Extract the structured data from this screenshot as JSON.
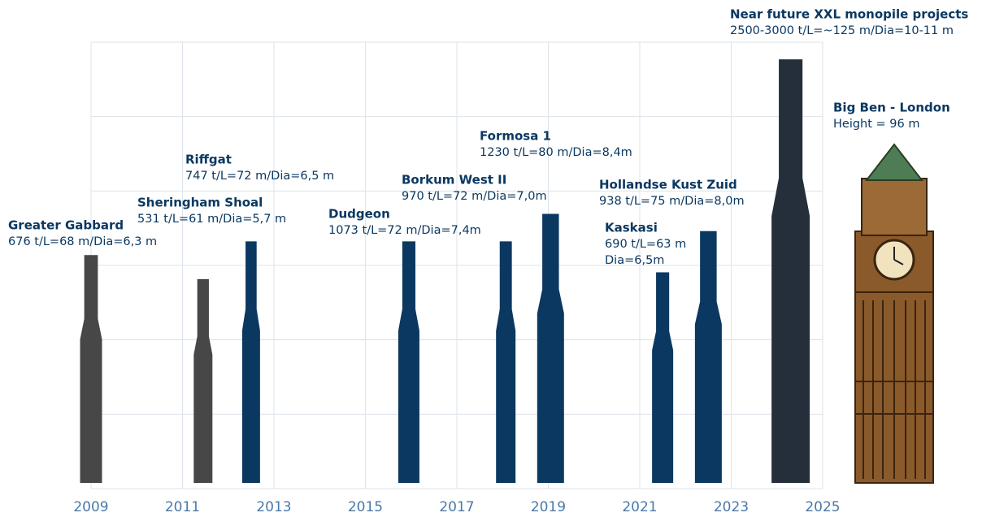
{
  "chart_data": {
    "type": "monopile",
    "xlim": [
      2009,
      2025
    ],
    "xticks": [
      2009,
      2011,
      2013,
      2015,
      2017,
      2019,
      2021,
      2023,
      2025
    ],
    "ylim": [
      0,
      130
    ],
    "grid": true,
    "projects": [
      {
        "name": "Greater Gabbard",
        "details": [
          "676 t/L=68 m/Dia=6,3 m"
        ],
        "x": 2009.0,
        "value": 68,
        "color": "#474747"
      },
      {
        "name": "Sheringham Shoal",
        "details": [
          "531 t/L=61 m/Dia=5,7 m"
        ],
        "x": 2011.45,
        "value": 61,
        "color": "#474747"
      },
      {
        "name": "Riffgat",
        "details": [
          "747 t/L=72 m/Dia=6,5 m"
        ],
        "x": 2012.5,
        "value": 72,
        "color": "#0b3861"
      },
      {
        "name": "Dudgeon",
        "details": [
          "1073 t/L=72 m/Dia=7,4m"
        ],
        "x": 2015.95,
        "value": 72,
        "color": "#0b3861"
      },
      {
        "name": "Borkum West II",
        "details": [
          "970 t/L=72 m/Dia=7,0m"
        ],
        "x": 2018.07,
        "value": 72,
        "color": "#0b3861"
      },
      {
        "name": "Formosa 1",
        "details": [
          "1230 t/L=80 m/Dia=8,4m"
        ],
        "x": 2019.05,
        "value": 80,
        "color": "#0b3861"
      },
      {
        "name": "Kaskasi",
        "details": [
          "690 t/L=63 m",
          "Dia=6,5m"
        ],
        "x": 2021.5,
        "value": 63,
        "color": "#0b3861"
      },
      {
        "name": "Hollandse Kust Zuid",
        "details": [
          "938 t/L=75 m/Dia=8,0m"
        ],
        "x": 2022.5,
        "value": 75,
        "color": "#0b3861"
      },
      {
        "name": "Near future XXL monopile projects",
        "details": [
          "2500-3000 t/L=~125 m/Dia=10-11 m"
        ],
        "x": 2024.3,
        "value": 125,
        "color": "#242f3b"
      }
    ],
    "reference": {
      "name": "Big Ben - London",
      "details": [
        "Height = 96 m"
      ]
    }
  }
}
